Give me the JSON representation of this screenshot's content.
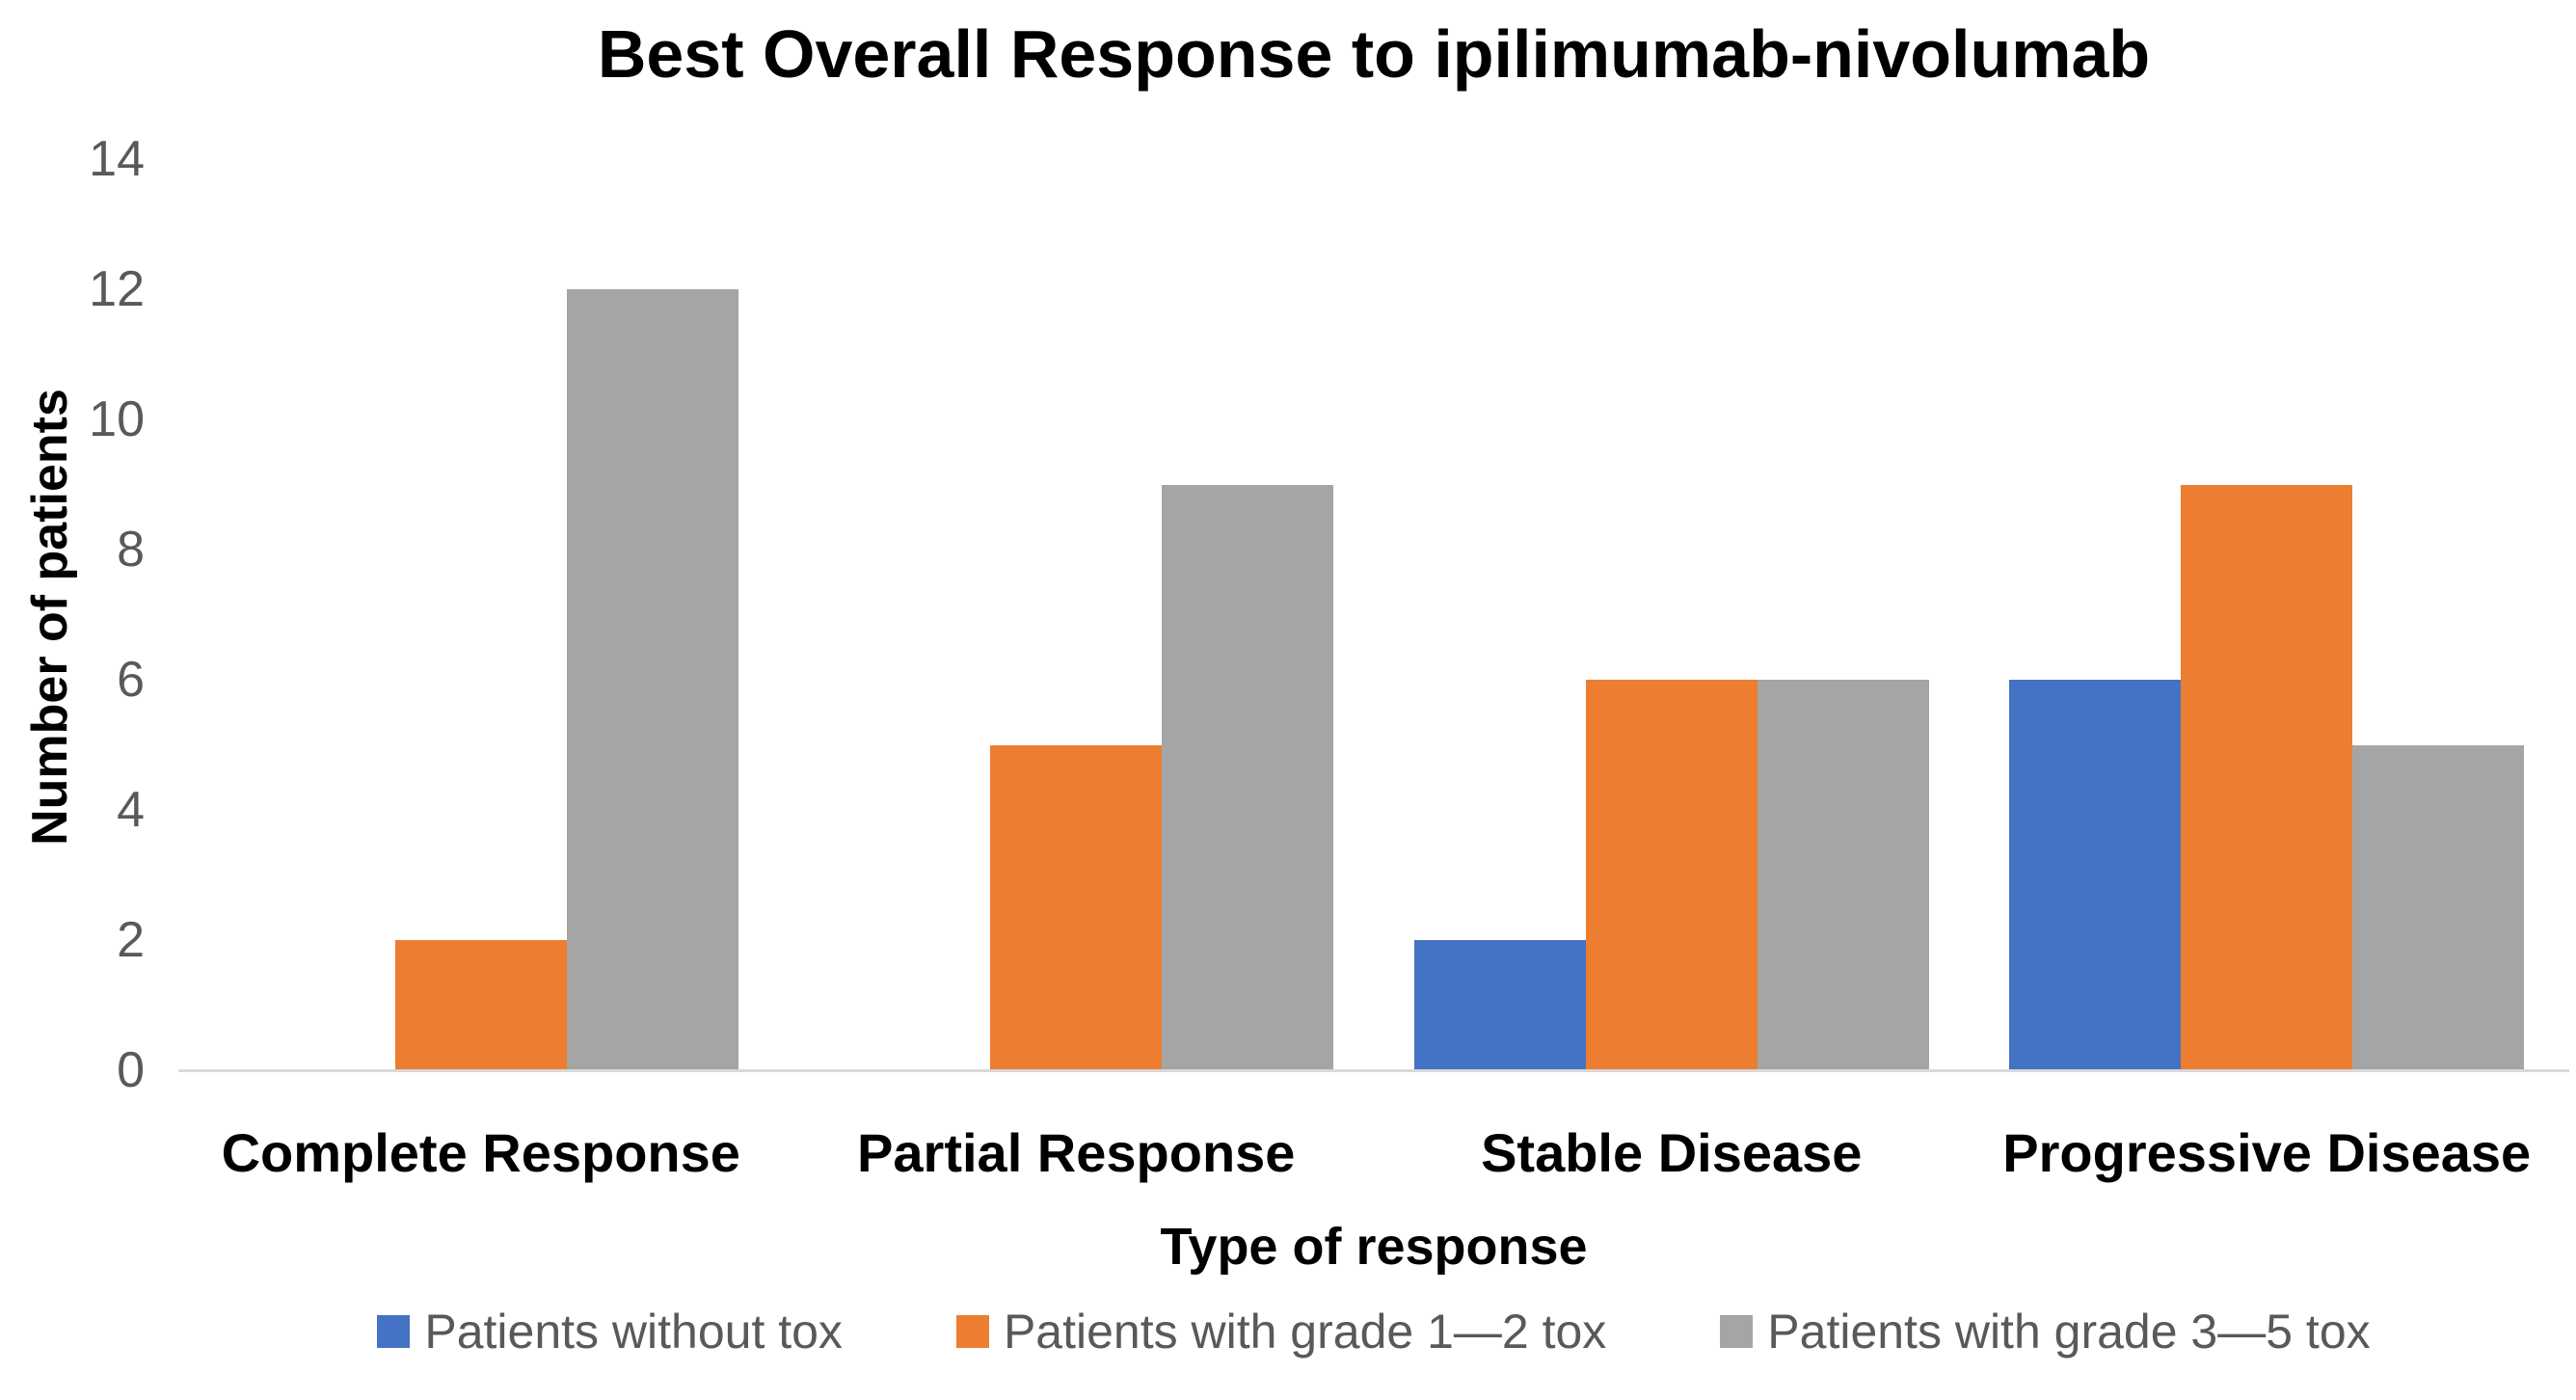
{
  "chart_data": {
    "type": "bar",
    "title": "Best Overall Response to ipilimumab-nivolumab",
    "xlabel": "Type of response",
    "ylabel": "Number of patients",
    "categories": [
      "Complete Response",
      "Partial Response",
      "Stable Disease",
      "Progressive Disease"
    ],
    "series": [
      {
        "name": "Patients without tox",
        "color": "#4472C4",
        "values": [
          0,
          0,
          2,
          6
        ]
      },
      {
        "name": "Patients with grade 1—2 tox",
        "color": "#ED7D31",
        "values": [
          2,
          5,
          6,
          9
        ]
      },
      {
        "name": "Patients with grade 3—5 tox",
        "color": "#A5A5A5",
        "values": [
          12,
          9,
          6,
          5
        ]
      }
    ],
    "ylim": [
      0,
      14
    ],
    "yticks": [
      0,
      2,
      4,
      6,
      8,
      10,
      12,
      14
    ],
    "grid": false,
    "legend_position": "bottom",
    "colors": {
      "axis_line": "#D9D9D9",
      "tick_labels": "#595959",
      "legend_text": "#595959",
      "text": "#000000"
    }
  }
}
